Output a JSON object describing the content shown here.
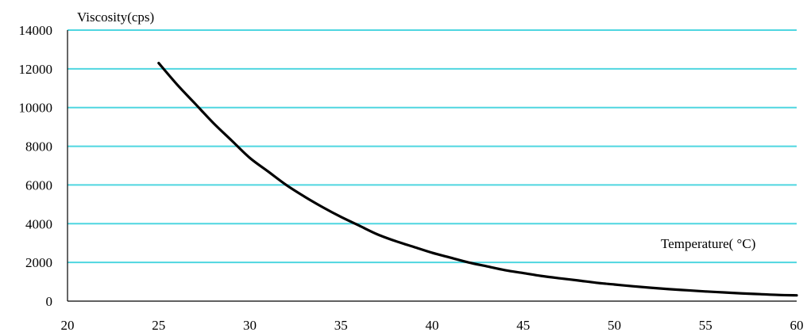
{
  "chart_data": {
    "type": "line",
    "ylabel": "Viscosity(cps)",
    "xlabel": "Temperature( °C)",
    "xlim": [
      20,
      60
    ],
    "ylim": [
      0,
      14000
    ],
    "xticks": [
      20,
      25,
      30,
      35,
      40,
      45,
      50,
      55,
      60
    ],
    "yticks": [
      0,
      2000,
      4000,
      6000,
      8000,
      10000,
      12000,
      14000
    ],
    "grid": true,
    "colors": {
      "grid": "#4fd6e0",
      "line": "#000000"
    },
    "series": [
      {
        "x": [
          25,
          26,
          27,
          28,
          29,
          30,
          31,
          32,
          33,
          34,
          35,
          36,
          37,
          38,
          39,
          40,
          41,
          42,
          43,
          44,
          45,
          46,
          47,
          48,
          49,
          50,
          51,
          52,
          53,
          54,
          55,
          56,
          57,
          58,
          59,
          60
        ],
        "values": [
          12300,
          11200,
          10200,
          9200,
          8300,
          7400,
          6700,
          6000,
          5400,
          4850,
          4350,
          3900,
          3450,
          3100,
          2800,
          2500,
          2250,
          2000,
          1800,
          1600,
          1450,
          1300,
          1180,
          1070,
          950,
          860,
          770,
          690,
          620,
          560,
          500,
          450,
          400,
          360,
          320,
          300
        ]
      }
    ]
  }
}
